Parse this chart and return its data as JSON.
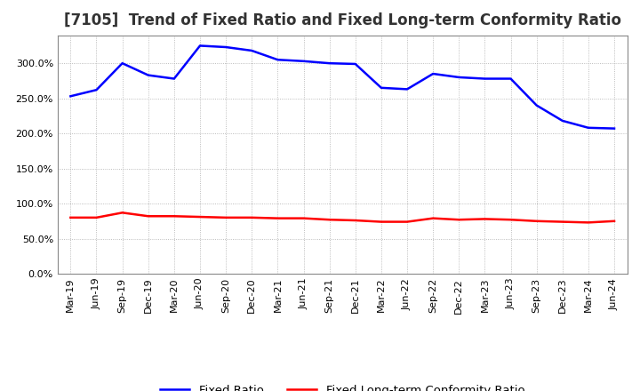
{
  "title": "[7105]  Trend of Fixed Ratio and Fixed Long-term Conformity Ratio",
  "x_labels": [
    "Mar-19",
    "Jun-19",
    "Sep-19",
    "Dec-19",
    "Mar-20",
    "Jun-20",
    "Sep-20",
    "Dec-20",
    "Mar-21",
    "Jun-21",
    "Sep-21",
    "Dec-21",
    "Mar-22",
    "Jun-22",
    "Sep-22",
    "Dec-22",
    "Mar-23",
    "Jun-23",
    "Sep-23",
    "Dec-23",
    "Mar-24",
    "Jun-24"
  ],
  "fixed_ratio": [
    253,
    262,
    300,
    283,
    278,
    325,
    323,
    318,
    305,
    303,
    300,
    299,
    265,
    263,
    285,
    280,
    278,
    278,
    240,
    218,
    208,
    207
  ],
  "fixed_lt_ratio": [
    80,
    80,
    87,
    82,
    82,
    81,
    80,
    80,
    79,
    79,
    77,
    76,
    74,
    74,
    79,
    77,
    78,
    77,
    75,
    74,
    73,
    75
  ],
  "fixed_ratio_color": "#0000FF",
  "fixed_lt_ratio_color": "#FF0000",
  "ylim": [
    0,
    340
  ],
  "yticks": [
    0,
    50,
    100,
    150,
    200,
    250,
    300
  ],
  "background_color": "#FFFFFF",
  "plot_bg_color": "#FFFFFF",
  "grid_color": "#AAAAAA",
  "legend_fixed": "Fixed Ratio",
  "legend_lt": "Fixed Long-term Conformity Ratio",
  "title_fontsize": 12,
  "axis_fontsize": 8,
  "legend_fontsize": 9.5,
  "line_width": 1.8
}
